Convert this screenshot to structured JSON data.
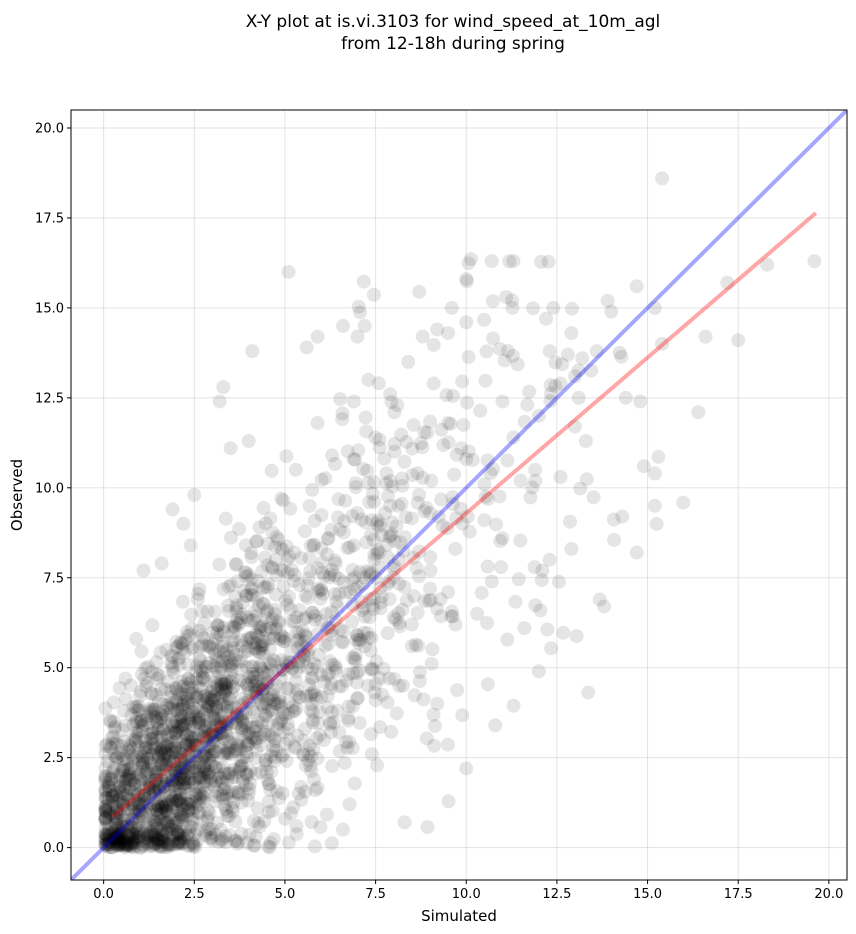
{
  "chart_data": {
    "type": "scatter",
    "title_line1": "X-Y plot at is.vi.3103 for wind_speed_at_10m_agl",
    "title_line2": "from 12-18h during spring",
    "xlabel": "Simulated",
    "ylabel": "Observed",
    "xlim": [
      -0.9,
      20.5
    ],
    "ylim": [
      -0.9,
      20.5
    ],
    "xticks": [
      0.0,
      2.5,
      5.0,
      7.5,
      10.0,
      12.5,
      15.0,
      17.5,
      20.0
    ],
    "yticks": [
      0.0,
      2.5,
      5.0,
      7.5,
      10.0,
      12.5,
      15.0,
      17.5,
      20.0
    ],
    "xtick_labels": [
      "0.0",
      "2.5",
      "5.0",
      "7.5",
      "10.0",
      "12.5",
      "15.0",
      "17.5",
      "20.0"
    ],
    "ytick_labels": [
      "0.0",
      "2.5",
      "5.0",
      "7.5",
      "10.0",
      "12.5",
      "15.0",
      "17.5",
      "20.0"
    ],
    "grid": true,
    "point_color": "#000000",
    "point_opacity": 0.1,
    "identity_line": {
      "color": "#0000ff",
      "opacity": 0.35,
      "points": [
        [
          -0.9,
          -0.9
        ],
        [
          20.5,
          20.5
        ]
      ]
    },
    "fit_line": {
      "color": "#ff0000",
      "opacity": 0.35,
      "points": [
        [
          0.3,
          0.9
        ],
        [
          19.6,
          17.6
        ]
      ]
    },
    "points": [
      [
        15.4,
        18.6
      ],
      [
        19.6,
        16.3
      ],
      [
        18.3,
        16.2
      ],
      [
        17.2,
        15.7
      ],
      [
        17.5,
        14.1
      ],
      [
        16.4,
        12.1
      ],
      [
        16.6,
        14.2
      ],
      [
        15.2,
        15.0
      ],
      [
        15.4,
        14.0
      ],
      [
        15.2,
        10.4
      ],
      [
        15.2,
        9.5
      ],
      [
        14.7,
        8.2
      ],
      [
        14.3,
        9.2
      ],
      [
        13.8,
        6.7
      ],
      [
        14.9,
        10.6
      ],
      [
        14.8,
        12.4
      ],
      [
        14.4,
        12.5
      ],
      [
        14.7,
        15.6
      ],
      [
        13.9,
        15.2
      ],
      [
        14.0,
        14.9
      ],
      [
        13.6,
        13.8
      ],
      [
        13.2,
        13.6
      ],
      [
        12.8,
        13.7
      ],
      [
        13.0,
        13.1
      ],
      [
        13.1,
        12.5
      ],
      [
        12.6,
        12.9
      ],
      [
        12.3,
        13.8
      ],
      [
        12.2,
        14.7
      ],
      [
        12.4,
        15.0
      ],
      [
        12.9,
        14.3
      ],
      [
        11.3,
        16.3
      ],
      [
        10.7,
        16.3
      ],
      [
        11.1,
        15.3
      ],
      [
        10.0,
        15.8
      ],
      [
        9.6,
        15.0
      ],
      [
        10.0,
        14.6
      ],
      [
        9.2,
        14.4
      ],
      [
        9.5,
        14.3
      ],
      [
        8.8,
        14.2
      ],
      [
        7.2,
        14.5
      ],
      [
        7.0,
        14.2
      ],
      [
        6.6,
        14.5
      ],
      [
        5.9,
        14.2
      ],
      [
        5.6,
        13.9
      ],
      [
        5.1,
        16.0
      ],
      [
        4.1,
        13.8
      ],
      [
        3.3,
        12.8
      ],
      [
        3.5,
        11.1
      ],
      [
        4.0,
        11.3
      ],
      [
        3.2,
        12.4
      ],
      [
        2.5,
        9.8
      ],
      [
        2.2,
        9.0
      ],
      [
        1.9,
        9.4
      ],
      [
        2.4,
        8.4
      ],
      [
        1.6,
        7.9
      ],
      [
        1.1,
        7.7
      ],
      [
        0.9,
        5.8
      ],
      [
        0.6,
        4.7
      ],
      [
        0.3,
        3.3
      ],
      [
        0.1,
        2.4
      ],
      [
        0.5,
        0.6
      ],
      [
        0.8,
        1.0
      ],
      [
        0.9,
        3.2
      ],
      [
        1.2,
        2.5
      ],
      [
        1.4,
        1.6
      ],
      [
        1.6,
        0.3
      ],
      [
        1.8,
        0.9
      ],
      [
        2.0,
        2.0
      ],
      [
        2.2,
        3.4
      ],
      [
        2.4,
        1.2
      ],
      [
        2.6,
        0.5
      ],
      [
        2.8,
        2.8
      ],
      [
        3.0,
        4.1
      ],
      [
        3.2,
        2.2
      ],
      [
        3.4,
        1.0
      ],
      [
        3.6,
        3.6
      ],
      [
        3.8,
        5.2
      ],
      [
        4.0,
        2.9
      ],
      [
        4.2,
        0.3
      ],
      [
        4.4,
        4.4
      ],
      [
        4.6,
        6.1
      ],
      [
        4.8,
        3.3
      ],
      [
        5.0,
        0.8
      ],
      [
        5.2,
        5.0
      ],
      [
        5.4,
        7.3
      ],
      [
        5.6,
        4.2
      ],
      [
        5.8,
        1.9
      ],
      [
        6.0,
        6.3
      ],
      [
        6.2,
        8.6
      ],
      [
        6.4,
        4.9
      ],
      [
        6.6,
        0.5
      ],
      [
        6.8,
        7.1
      ],
      [
        7.0,
        9.3
      ],
      [
        7.2,
        5.6
      ],
      [
        7.4,
        2.6
      ],
      [
        7.6,
        8.2
      ],
      [
        7.8,
        10.4
      ],
      [
        8.0,
        6.4
      ],
      [
        8.3,
        0.7
      ],
      [
        8.5,
        5.6
      ],
      [
        8.7,
        9.8
      ],
      [
        9.0,
        7.2
      ],
      [
        9.2,
        4.0
      ],
      [
        9.5,
        11.8
      ],
      [
        9.7,
        8.3
      ],
      [
        10.0,
        2.2
      ],
      [
        10.3,
        6.5
      ],
      [
        10.5,
        10.1
      ],
      [
        10.8,
        3.4
      ],
      [
        11.0,
        8.6
      ],
      [
        11.3,
        11.4
      ],
      [
        11.6,
        6.1
      ],
      [
        11.9,
        10.5
      ],
      [
        12.0,
        4.9
      ],
      [
        12.3,
        8.0
      ],
      [
        12.6,
        10.3
      ],
      [
        12.9,
        8.3
      ],
      [
        13.3,
        11.3
      ],
      [
        1.0,
        0.0
      ],
      [
        1.5,
        1.2
      ],
      [
        2.0,
        0.6
      ],
      [
        2.5,
        1.8
      ],
      [
        3.0,
        0.2
      ],
      [
        3.5,
        2.6
      ],
      [
        4.0,
        1.5
      ],
      [
        4.5,
        2.1
      ],
      [
        5.0,
        3.7
      ],
      [
        5.5,
        2.6
      ],
      [
        6.0,
        4.8
      ],
      [
        6.5,
        3.2
      ],
      [
        7.0,
        5.9
      ],
      [
        7.5,
        4.1
      ],
      [
        8.0,
        7.5
      ],
      [
        8.5,
        6.2
      ],
      [
        9.0,
        9.3
      ],
      [
        9.5,
        7.1
      ],
      [
        10.0,
        10.8
      ],
      [
        10.5,
        9.1
      ],
      [
        11.0,
        12.4
      ],
      [
        11.5,
        10.2
      ],
      [
        12.0,
        12.0
      ],
      [
        0.7,
        1.9
      ],
      [
        1.3,
        3.8
      ],
      [
        1.9,
        5.3
      ],
      [
        2.6,
        6.9
      ],
      [
        3.1,
        5.8
      ],
      [
        3.7,
        7.4
      ],
      [
        4.3,
        8.9
      ],
      [
        4.9,
        9.7
      ],
      [
        5.3,
        10.5
      ],
      [
        5.9,
        11.8
      ],
      [
        6.3,
        10.9
      ],
      [
        6.9,
        12.4
      ],
      [
        7.3,
        13.0
      ],
      [
        7.9,
        12.6
      ],
      [
        8.4,
        13.5
      ],
      [
        9.1,
        12.9
      ],
      [
        0.4,
        0.1
      ],
      [
        0.9,
        0.4
      ],
      [
        1.4,
        0.7
      ],
      [
        1.9,
        1.1
      ],
      [
        2.4,
        2.3
      ],
      [
        2.9,
        3.1
      ],
      [
        3.4,
        3.9
      ],
      [
        3.9,
        4.6
      ],
      [
        4.4,
        5.4
      ],
      [
        4.9,
        5.9
      ],
      [
        5.4,
        6.6
      ],
      [
        5.9,
        7.2
      ],
      [
        6.4,
        7.9
      ],
      [
        6.9,
        8.4
      ],
      [
        7.4,
        9.1
      ],
      [
        7.9,
        9.5
      ]
    ]
  }
}
